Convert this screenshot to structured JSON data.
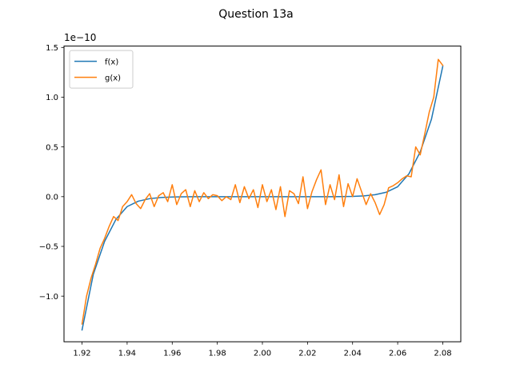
{
  "chart_data": {
    "type": "line",
    "title": "Question 13a",
    "xlabel": "",
    "ylabel": "",
    "y_offset_label": "1e−10",
    "xlim": [
      1.912,
      2.088
    ],
    "ylim": [
      -1.4586,
      1.5137
    ],
    "x_ticks": [
      1.92,
      1.94,
      1.96,
      1.98,
      2.0,
      2.02,
      2.04,
      2.06,
      2.08
    ],
    "x_tick_labels": [
      "1.92",
      "1.94",
      "1.96",
      "1.98",
      "2.00",
      "2.02",
      "2.04",
      "2.06",
      "2.08"
    ],
    "y_ticks": [
      -1.0,
      -0.5,
      0.0,
      0.5,
      1.0,
      1.5
    ],
    "y_tick_labels": [
      "−1.0",
      "−0.5",
      "0.0",
      "0.5",
      "1.0",
      "1.5"
    ],
    "grid": false,
    "legend_position": "top-left",
    "series": [
      {
        "name": "f(x)",
        "color": "#1f77b4",
        "x": [
          1.92,
          1.925,
          1.93,
          1.935,
          1.94,
          1.945,
          1.95,
          1.955,
          1.96,
          1.965,
          1.97,
          1.98,
          2.0,
          2.02,
          2.03,
          2.035,
          2.04,
          2.045,
          2.05,
          2.055,
          2.06,
          2.065,
          2.07,
          2.075,
          2.08
        ],
        "y": [
          -1.34,
          -0.78,
          -0.45,
          -0.23,
          -0.1,
          -0.045,
          -0.02,
          -0.008,
          -0.003,
          -0.001,
          0.0,
          0.0,
          0.0,
          0.0,
          0.0,
          0.001,
          0.003,
          0.008,
          0.02,
          0.045,
          0.1,
          0.23,
          0.45,
          0.78,
          1.31
        ]
      },
      {
        "name": "g(x)",
        "color": "#ff7f0e",
        "x": [
          1.92,
          1.922,
          1.924,
          1.926,
          1.928,
          1.93,
          1.932,
          1.934,
          1.936,
          1.938,
          1.94,
          1.942,
          1.944,
          1.946,
          1.948,
          1.95,
          1.952,
          1.954,
          1.956,
          1.958,
          1.96,
          1.962,
          1.964,
          1.966,
          1.968,
          1.97,
          1.972,
          1.974,
          1.976,
          1.978,
          1.98,
          1.982,
          1.984,
          1.986,
          1.988,
          1.99,
          1.992,
          1.994,
          1.996,
          1.998,
          2.0,
          2.002,
          2.004,
          2.006,
          2.008,
          2.01,
          2.012,
          2.014,
          2.016,
          2.018,
          2.02,
          2.022,
          2.024,
          2.026,
          2.028,
          2.03,
          2.032,
          2.034,
          2.036,
          2.038,
          2.04,
          2.042,
          2.044,
          2.046,
          2.048,
          2.05,
          2.052,
          2.054,
          2.056,
          2.058,
          2.06,
          2.062,
          2.064,
          2.066,
          2.068,
          2.07,
          2.072,
          2.074,
          2.076,
          2.078,
          2.08
        ],
        "y": [
          -1.28,
          -1.0,
          -0.82,
          -0.68,
          -0.52,
          -0.42,
          -0.3,
          -0.2,
          -0.24,
          -0.1,
          -0.05,
          0.02,
          -0.07,
          -0.12,
          -0.03,
          0.03,
          -0.1,
          0.01,
          0.04,
          -0.05,
          0.12,
          -0.08,
          0.03,
          0.07,
          -0.1,
          0.06,
          -0.05,
          0.04,
          -0.02,
          0.02,
          0.01,
          -0.04,
          0.0,
          -0.03,
          0.12,
          -0.06,
          0.1,
          -0.02,
          0.07,
          -0.11,
          0.12,
          -0.05,
          0.07,
          -0.13,
          0.1,
          -0.2,
          0.06,
          0.03,
          -0.07,
          0.2,
          -0.12,
          0.05,
          0.17,
          0.27,
          -0.08,
          0.12,
          -0.03,
          0.22,
          -0.1,
          0.13,
          0.0,
          0.18,
          0.05,
          -0.08,
          0.03,
          -0.06,
          -0.18,
          -0.08,
          0.09,
          0.11,
          0.14,
          0.18,
          0.21,
          0.2,
          0.5,
          0.42,
          0.63,
          0.85,
          1.0,
          1.38,
          1.32
        ]
      }
    ]
  }
}
